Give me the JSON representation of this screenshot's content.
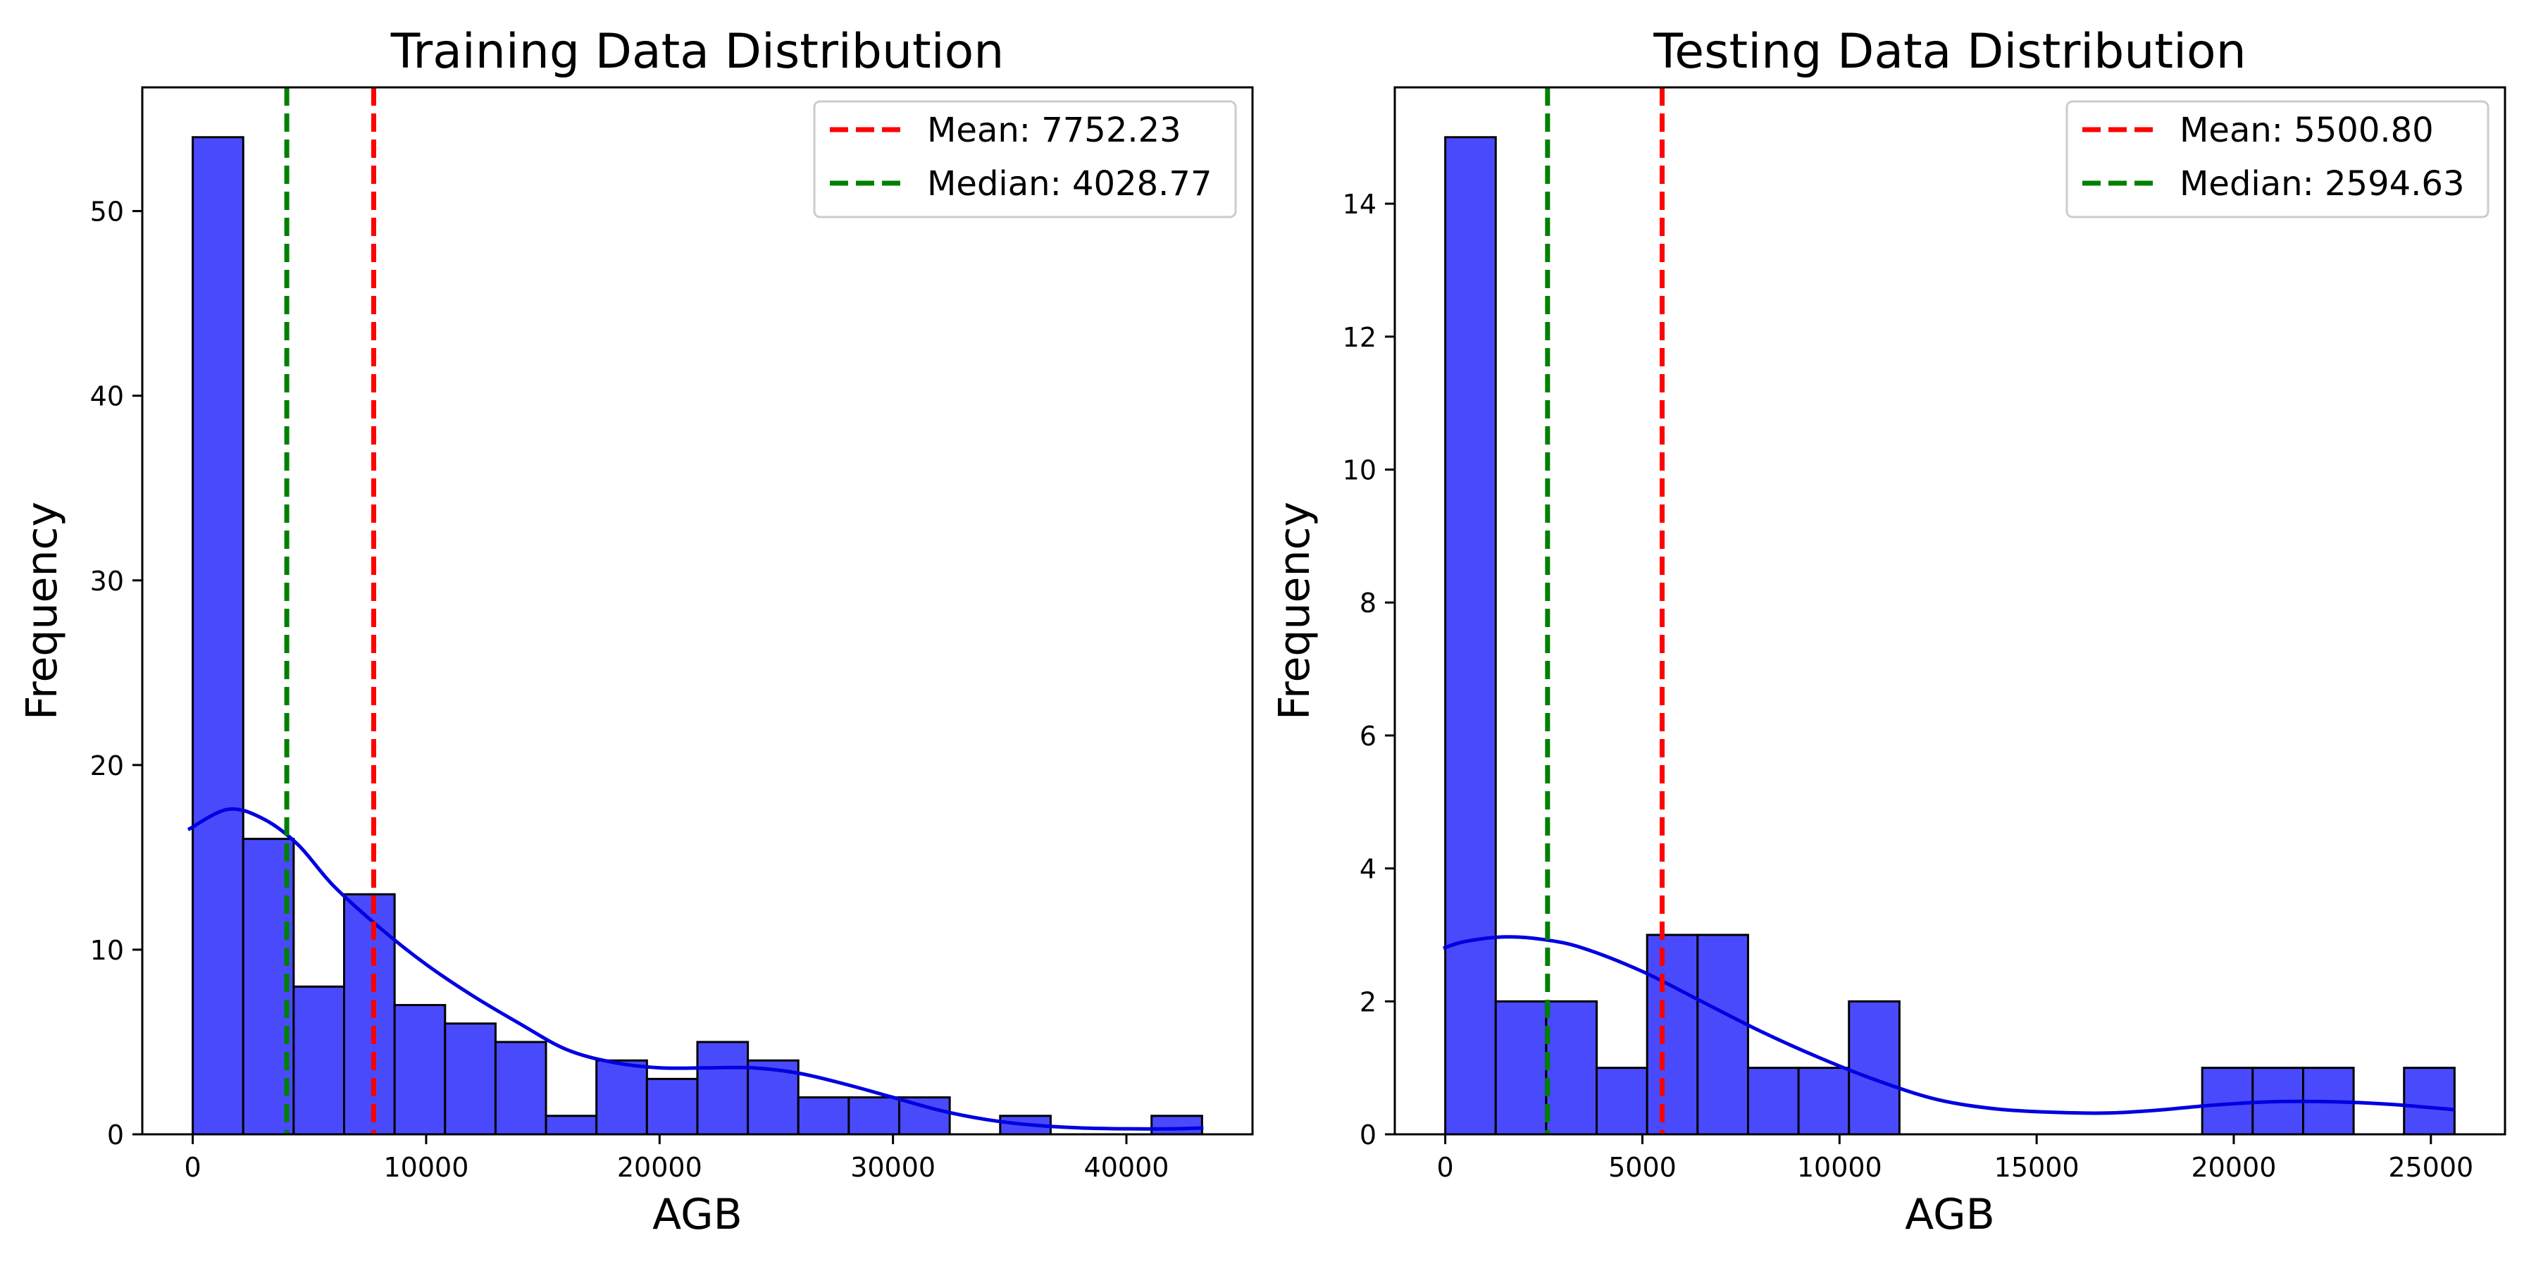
{
  "chart_data": [
    {
      "type": "bar",
      "title": "Training Data Distribution",
      "xlabel": "AGB",
      "ylabel": "Frequency",
      "xlim": [
        -2161,
        45402
      ],
      "ylim": [
        0,
        56.7
      ],
      "xticks": [
        0,
        10000,
        20000,
        30000,
        40000
      ],
      "yticks": [
        0,
        10,
        20,
        30,
        40,
        50
      ],
      "bin_width": 2162,
      "bins_start": 0,
      "counts": [
        54,
        16,
        8,
        13,
        7,
        6,
        5,
        1,
        4,
        3,
        5,
        4,
        2,
        2,
        2,
        0,
        1,
        0,
        0,
        1
      ],
      "kde": {
        "x": [
          -200,
          1500,
          3000,
          4500,
          6000,
          8000,
          10000,
          12000,
          14000,
          16000,
          18000,
          20000,
          22000,
          24000,
          26000,
          28000,
          30000,
          32000,
          34000,
          36000,
          38000,
          40000,
          42000,
          43300
        ],
        "y": [
          16.5,
          17.6,
          17.1,
          15.7,
          13.5,
          11.2,
          9.2,
          7.5,
          6.0,
          4.6,
          3.9,
          3.6,
          3.6,
          3.6,
          3.3,
          2.7,
          2.0,
          1.3,
          0.8,
          0.5,
          0.35,
          0.3,
          0.3,
          0.35
        ]
      },
      "lines": [
        {
          "label": "Mean: 7752.23",
          "value": 7752.23,
          "color": "#ff0000",
          "dash": "dashed"
        },
        {
          "label": "Median: 4028.77",
          "value": 4028.77,
          "color": "#008000",
          "dash": "dashed"
        }
      ],
      "bar_color": "#4a4afd",
      "kde_color": "#0000e0",
      "legend_position": "upper right"
    },
    {
      "type": "bar",
      "title": "Testing Data Distribution",
      "xlabel": "AGB",
      "ylabel": "Frequency",
      "xlim": [
        -1280,
        26880
      ],
      "ylim": [
        0,
        15.75
      ],
      "xticks": [
        0,
        5000,
        10000,
        15000,
        20000,
        25000
      ],
      "yticks": [
        0,
        2,
        4,
        6,
        8,
        10,
        12,
        14
      ],
      "bin_width": 1280,
      "bins_start": 0,
      "counts": [
        15,
        2,
        2,
        1,
        3,
        3,
        1,
        1,
        2,
        0,
        0,
        0,
        0,
        0,
        0,
        1,
        1,
        1,
        0,
        1
      ],
      "kde": {
        "x": [
          -50,
          500,
          1500,
          2500,
          3500,
          5000,
          6500,
          8000,
          9500,
          11000,
          12500,
          14000,
          15500,
          16800,
          18000,
          19500,
          21000,
          22500,
          24000,
          25600
        ],
        "y": [
          2.8,
          2.9,
          2.97,
          2.93,
          2.8,
          2.45,
          2.0,
          1.55,
          1.15,
          0.8,
          0.52,
          0.38,
          0.33,
          0.32,
          0.36,
          0.44,
          0.49,
          0.49,
          0.45,
          0.37
        ]
      },
      "lines": [
        {
          "label": "Mean: 5500.80",
          "value": 5500.8,
          "color": "#ff0000",
          "dash": "dashed"
        },
        {
          "label": "Median: 2594.63",
          "value": 2594.63,
          "color": "#008000",
          "dash": "dashed"
        }
      ],
      "bar_color": "#4a4afd",
      "kde_color": "#0000e0",
      "legend_position": "upper right"
    }
  ]
}
